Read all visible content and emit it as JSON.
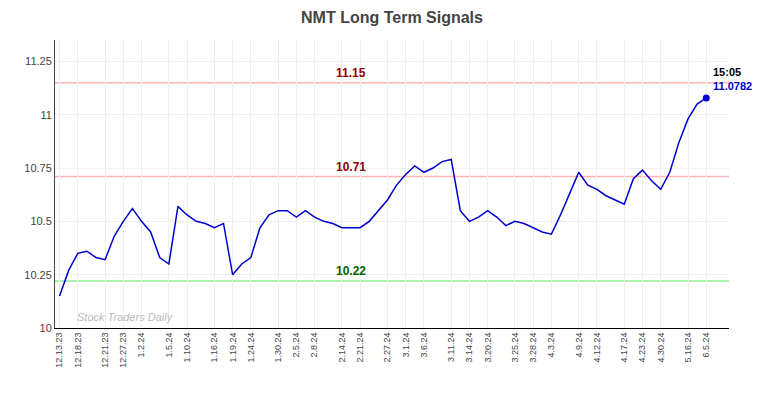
{
  "chart_data": {
    "type": "line",
    "title": "NMT Long Term Signals",
    "categories": [
      "12.13.23",
      null,
      "12.18.23",
      null,
      null,
      "12.21.23",
      null,
      "12.27.23",
      null,
      "1.2.24",
      null,
      null,
      "1.5.24",
      null,
      "1.10.24",
      null,
      null,
      "1.16.24",
      null,
      "1.19.24",
      null,
      "1.24.24",
      null,
      null,
      "1.30.24",
      null,
      "2.5.24",
      null,
      "2.8.24",
      null,
      null,
      "2.14.24",
      null,
      "2.21.24",
      null,
      null,
      "2.27.24",
      null,
      "3.1.24",
      null,
      "3.6.24",
      null,
      null,
      "3.11.24",
      null,
      "3.14.24",
      null,
      "3.20.24",
      null,
      null,
      "3.25.24",
      null,
      "3.28.24",
      null,
      "4.3.24",
      null,
      null,
      "4.9.24",
      null,
      "4.12.24",
      null,
      null,
      "4.17.24",
      null,
      "4.23.24",
      null,
      "4.30.24",
      null,
      null,
      "5.16.24",
      null,
      "6.5.24"
    ],
    "values": [
      10.15,
      10.27,
      10.35,
      10.36,
      10.33,
      10.32,
      10.43,
      10.5,
      10.56,
      10.5,
      10.45,
      10.33,
      10.3,
      10.57,
      10.53,
      10.5,
      10.49,
      10.47,
      10.49,
      10.25,
      10.3,
      10.33,
      10.47,
      10.53,
      10.55,
      10.55,
      10.52,
      10.55,
      10.52,
      10.5,
      10.49,
      10.47,
      10.47,
      10.47,
      10.5,
      10.55,
      10.6,
      10.67,
      10.72,
      10.76,
      10.73,
      10.75,
      10.78,
      10.79,
      10.55,
      10.5,
      10.52,
      10.55,
      10.52,
      10.48,
      10.5,
      10.49,
      10.47,
      10.45,
      10.44,
      10.53,
      10.63,
      10.73,
      10.67,
      10.65,
      10.62,
      10.6,
      10.58,
      10.7,
      10.74,
      10.69,
      10.65,
      10.73,
      10.87,
      10.98,
      11.05,
      11.0782
    ],
    "color": "#0000cc",
    "hlines": [
      {
        "value": 11.15,
        "label": "11.15",
        "color": "#ffb3b3",
        "label_color": "#8b0000"
      },
      {
        "value": 10.71,
        "label": "10.71",
        "color": "#ffb3b3",
        "label_color": "#8b0000"
      },
      {
        "value": 10.22,
        "label": "10.22",
        "color": "#90EE90",
        "label_color": "#006400"
      }
    ],
    "annotations": [
      {
        "text": "15:05",
        "color": "#000000"
      },
      {
        "text": "11.0782",
        "color": "#0000cc"
      }
    ],
    "watermark": {
      "text": "Stock Traders Daily",
      "color": "#bbbbbb"
    },
    "ylim": [
      10.0,
      11.35
    ],
    "yticks": [
      10,
      10.25,
      10.5,
      10.75,
      11,
      11.25
    ],
    "grid": true
  }
}
